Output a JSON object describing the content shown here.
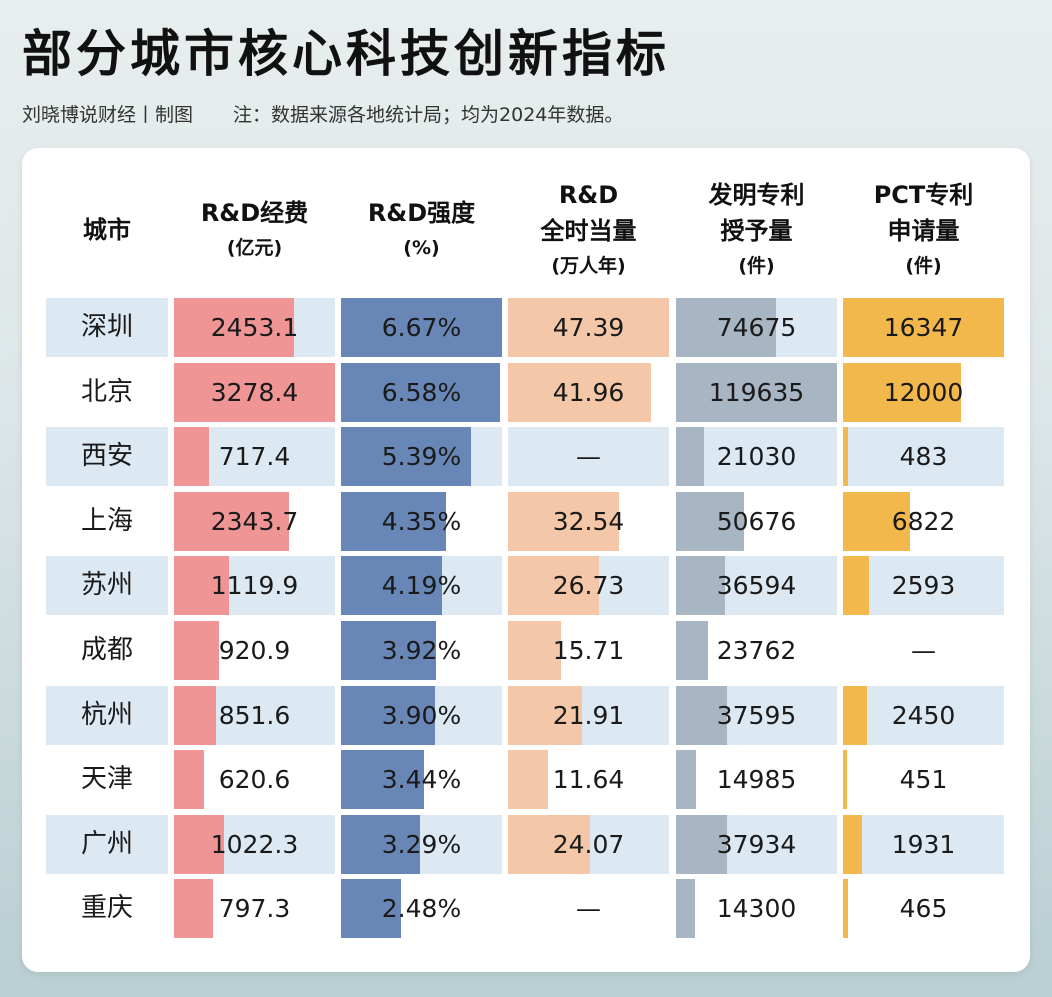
{
  "header": {
    "title": "部分城市核心科技创新指标",
    "byline": "刘晓博说财经丨制图",
    "note": "注：数据来源各地统计局；均为2024年数据。"
  },
  "table": {
    "columns": [
      {
        "key": "city",
        "line1": "城市",
        "line2": "",
        "line3": ""
      },
      {
        "key": "rd_expense",
        "line1": "R&D经费",
        "line2": "(亿元)",
        "line3": ""
      },
      {
        "key": "rd_intensity",
        "line1": "R&D强度",
        "line2": "(%)",
        "line3": ""
      },
      {
        "key": "rd_fte",
        "line1": "R&D",
        "line2": "全时当量",
        "line3": "(万人年)"
      },
      {
        "key": "invention_patents",
        "line1": "发明专利",
        "line2": "授予量",
        "line3": "(件)"
      },
      {
        "key": "pct_patents",
        "line1": "PCT专利",
        "line2": "申请量",
        "line3": "(件)"
      }
    ],
    "colors": {
      "rd_expense": "#ef9596",
      "rd_intensity": "#6887b7",
      "rd_fte": "#f3c7a7",
      "invention_patents": "#a8b6c4",
      "pct_patents": "#f2b84b",
      "stripe": "#dce8f2"
    },
    "rows": [
      {
        "city": "深圳",
        "rd_expense": "2453.1",
        "rd_intensity": "6.67%",
        "rd_fte": "47.39",
        "invention_patents": "74675",
        "pct_patents": "16347"
      },
      {
        "city": "北京",
        "rd_expense": "3278.4",
        "rd_intensity": "6.58%",
        "rd_fte": "41.96",
        "invention_patents": "119635",
        "pct_patents": "12000"
      },
      {
        "city": "西安",
        "rd_expense": "717.4",
        "rd_intensity": "5.39%",
        "rd_fte": "—",
        "invention_patents": "21030",
        "pct_patents": "483"
      },
      {
        "city": "上海",
        "rd_expense": "2343.7",
        "rd_intensity": "4.35%",
        "rd_fte": "32.54",
        "invention_patents": "50676",
        "pct_patents": "6822"
      },
      {
        "city": "苏州",
        "rd_expense": "1119.9",
        "rd_intensity": "4.19%",
        "rd_fte": "26.73",
        "invention_patents": "36594",
        "pct_patents": "2593"
      },
      {
        "city": "成都",
        "rd_expense": "920.9",
        "rd_intensity": "3.92%",
        "rd_fte": "15.71",
        "invention_patents": "23762",
        "pct_patents": "—"
      },
      {
        "city": "杭州",
        "rd_expense": "851.6",
        "rd_intensity": "3.90%",
        "rd_fte": "21.91",
        "invention_patents": "37595",
        "pct_patents": "2450"
      },
      {
        "city": "天津",
        "rd_expense": "620.6",
        "rd_intensity": "3.44%",
        "rd_fte": "11.64",
        "invention_patents": "14985",
        "pct_patents": "451"
      },
      {
        "city": "广州",
        "rd_expense": "1022.3",
        "rd_intensity": "3.29%",
        "rd_fte": "24.07",
        "invention_patents": "37934",
        "pct_patents": "1931"
      },
      {
        "city": "重庆",
        "rd_expense": "797.3",
        "rd_intensity": "2.48%",
        "rd_fte": "—",
        "invention_patents": "14300",
        "pct_patents": "465"
      }
    ]
  },
  "chart_data": {
    "type": "table",
    "title": "部分城市核心科技创新指标",
    "subtitle": "刘晓博说财经丨制图 注：数据来源各地统计局；均为2024年数据。",
    "categories": [
      "深圳",
      "北京",
      "西安",
      "上海",
      "苏州",
      "成都",
      "杭州",
      "天津",
      "广州",
      "重庆"
    ],
    "series": [
      {
        "name": "R&D经费(亿元)",
        "values": [
          2453.1,
          3278.4,
          717.4,
          2343.7,
          1119.9,
          920.9,
          851.6,
          620.6,
          1022.3,
          797.3
        ]
      },
      {
        "name": "R&D强度(%)",
        "values": [
          6.67,
          6.58,
          5.39,
          4.35,
          4.19,
          3.92,
          3.9,
          3.44,
          3.29,
          2.48
        ]
      },
      {
        "name": "R&D全时当量(万人年)",
        "values": [
          47.39,
          41.96,
          null,
          32.54,
          26.73,
          15.71,
          21.91,
          11.64,
          24.07,
          null
        ]
      },
      {
        "name": "发明专利授予量(件)",
        "values": [
          74675,
          119635,
          21030,
          50676,
          36594,
          23762,
          37595,
          14985,
          37934,
          14300
        ]
      },
      {
        "name": "PCT专利申请量(件)",
        "values": [
          16347,
          12000,
          483,
          6822,
          2593,
          null,
          2450,
          451,
          1931,
          465
        ]
      }
    ],
    "sorted_by": "R&D强度(%)",
    "layout": {
      "in_cell_bars": true,
      "striped_rows": true
    }
  }
}
